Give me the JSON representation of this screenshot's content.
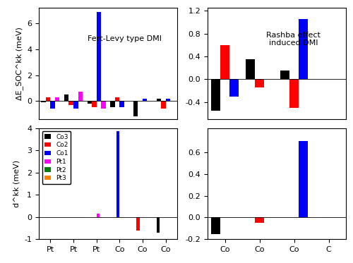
{
  "chart_data": [
    {
      "type": "bar",
      "ylabel": "ΔE_SOC^kk (meV)",
      "annotation": "Fert-Levy type DMI",
      "categories": [
        null,
        null,
        null,
        null,
        null,
        null
      ],
      "tick_labels": "y",
      "series": [
        {
          "name": "Co3",
          "color": "#000000",
          "values": [
            -0.1,
            0.5,
            -0.2,
            -0.5,
            -1.2,
            0.2
          ]
        },
        {
          "name": "Co2",
          "color": "#ff0000",
          "values": [
            0.3,
            -0.3,
            -0.5,
            0.3,
            0.0,
            -0.6
          ]
        },
        {
          "name": "Co1",
          "color": "#0000ff",
          "values": [
            -0.6,
            -0.6,
            6.9,
            -0.5,
            0.2,
            0.2
          ]
        },
        {
          "name": "Pt1",
          "color": "#ff00ff",
          "values": [
            0.3,
            0.7,
            -0.6,
            0.0,
            0.0,
            0.0
          ]
        }
      ],
      "ylim": [
        -1.4,
        7.2
      ],
      "yticks": [
        0,
        2,
        4,
        6
      ]
    },
    {
      "type": "bar",
      "annotation": "Rashba effect\ninduced DMI",
      "categories": [
        null,
        null,
        null,
        null
      ],
      "tick_labels": "y",
      "series": [
        {
          "name": "Co3",
          "color": "#000000",
          "values": [
            -0.55,
            0.35,
            0.15,
            0.01
          ]
        },
        {
          "name": "Co2",
          "color": "#ff0000",
          "values": [
            0.6,
            -0.15,
            -0.5,
            0.0
          ]
        },
        {
          "name": "Co1",
          "color": "#0000ff",
          "values": [
            -0.3,
            0.0,
            1.05,
            0.0
          ]
        }
      ],
      "ylim": [
        -0.7,
        1.25
      ],
      "yticks": [
        -0.4,
        0.0,
        0.4,
        0.8,
        1.2
      ]
    },
    {
      "type": "bar",
      "ylabel": "d^kk (meV)",
      "legend": "upper left",
      "categories": [
        "Pt",
        "Pt",
        "Pt",
        "Co",
        "Co",
        "Co"
      ],
      "series": [
        {
          "name": "Co3",
          "color": "#000000",
          "values": [
            0.0,
            0.0,
            0.0,
            0.0,
            0.0,
            -0.7
          ]
        },
        {
          "name": "Co2",
          "color": "#ff0000",
          "values": [
            0.0,
            0.0,
            0.0,
            0.0,
            -0.6,
            0.0
          ]
        },
        {
          "name": "Co1",
          "color": "#0000ff",
          "values": [
            0.0,
            0.0,
            0.0,
            3.85,
            0.0,
            0.0
          ]
        },
        {
          "name": "Pt1",
          "color": "#ff00ff",
          "values": [
            0.0,
            0.0,
            0.15,
            0.0,
            0.0,
            0.0
          ]
        },
        {
          "name": "Pt2",
          "color": "#008000",
          "values": [
            0.0,
            0.0,
            0.0,
            0.0,
            0.0,
            0.0
          ]
        },
        {
          "name": "Pt3",
          "color": "#ff8000",
          "values": [
            0.0,
            0.0,
            0.0,
            0.0,
            0.0,
            0.0
          ]
        }
      ],
      "ylim": [
        -1,
        4
      ],
      "yticks": [
        -1,
        0,
        1,
        2,
        3,
        4
      ]
    },
    {
      "type": "bar",
      "categories": [
        "Co",
        "Co",
        "Co",
        "C"
      ],
      "series": [
        {
          "name": "Co3",
          "color": "#000000",
          "values": [
            -0.15,
            0.0,
            0.0,
            0.0
          ]
        },
        {
          "name": "Co2",
          "color": "#ff0000",
          "values": [
            0.0,
            -0.05,
            0.0,
            0.0
          ]
        },
        {
          "name": "Co1",
          "color": "#0000ff",
          "values": [
            0.0,
            0.0,
            0.7,
            0.0
          ]
        }
      ],
      "ylim": [
        -0.2,
        0.82
      ],
      "yticks": [
        -0.2,
        0.0,
        0.2,
        0.4,
        0.6
      ]
    }
  ]
}
